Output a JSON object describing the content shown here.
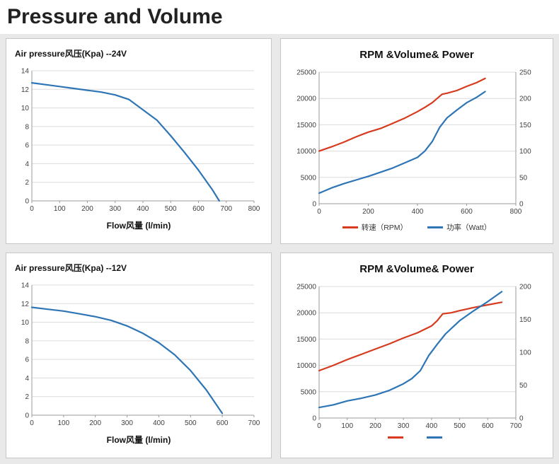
{
  "page": {
    "title": "Pressure and Volume"
  },
  "colors": {
    "red": "#d63b1f",
    "blue": "#2e75b6",
    "gridline": "#dcdcdc",
    "axis": "#9b9b9b"
  },
  "chart_data": [
    {
      "id": "pressure-24v",
      "type": "line",
      "title": "Air pressure风压(Kpa)  --24V",
      "xlabel": "Flow风量  (l/min)",
      "xlim": [
        0,
        800
      ],
      "xtick_step": 100,
      "ylim": [
        0,
        14
      ],
      "ytick_step": 2,
      "grid": true,
      "series": [
        {
          "key": "air-pressure-24v",
          "label": "",
          "color": "#2e75b6",
          "axis": "left",
          "x": [
            0,
            50,
            100,
            150,
            200,
            250,
            300,
            350,
            400,
            450,
            500,
            550,
            600,
            650,
            675
          ],
          "y": [
            12.7,
            12.5,
            12.3,
            12.1,
            11.9,
            11.7,
            11.4,
            10.9,
            9.8,
            8.7,
            7.0,
            5.2,
            3.3,
            1.2,
            0
          ]
        }
      ]
    },
    {
      "id": "rpm-power-24v",
      "type": "line",
      "title": "RPM &Volume& Power",
      "xlim": [
        0,
        800
      ],
      "xtick_step": 200,
      "ylim": [
        0,
        25000
      ],
      "ytick_step": 5000,
      "y2lim": [
        0,
        250
      ],
      "y2tick_step": 50,
      "grid": true,
      "legend_position": "bottom",
      "series": [
        {
          "key": "rpm-24v",
          "label": "转速（RPM）",
          "color": "#d63b1f",
          "axis": "left",
          "x": [
            0,
            50,
            100,
            150,
            200,
            250,
            300,
            350,
            400,
            430,
            460,
            500,
            520,
            560,
            600,
            640,
            675
          ],
          "y": [
            10000,
            10800,
            11700,
            12700,
            13600,
            14300,
            15300,
            16300,
            17500,
            18300,
            19200,
            20800,
            21000,
            21500,
            22300,
            23000,
            23800
          ]
        },
        {
          "key": "power-24v",
          "label": "功率（Watt）",
          "color": "#2e75b6",
          "axis": "right",
          "x": [
            0,
            50,
            100,
            150,
            200,
            250,
            300,
            350,
            400,
            430,
            460,
            490,
            520,
            560,
            600,
            640,
            675
          ],
          "y": [
            20,
            30,
            38,
            45,
            52,
            60,
            68,
            78,
            88,
            100,
            118,
            145,
            163,
            178,
            192,
            202,
            213
          ]
        }
      ]
    },
    {
      "id": "pressure-12v",
      "type": "line",
      "title": "Air pressure风压(Kpa)  --12V",
      "xlabel": "Flow风量  (l/min)",
      "xlim": [
        0,
        700
      ],
      "xtick_step": 100,
      "ylim": [
        0,
        14
      ],
      "ytick_step": 2,
      "grid": true,
      "series": [
        {
          "key": "air-pressure-12v",
          "label": "",
          "color": "#2e75b6",
          "axis": "left",
          "x": [
            0,
            50,
            100,
            150,
            200,
            250,
            300,
            350,
            400,
            450,
            500,
            550,
            600
          ],
          "y": [
            11.6,
            11.4,
            11.2,
            10.9,
            10.6,
            10.2,
            9.6,
            8.8,
            7.8,
            6.5,
            4.8,
            2.7,
            0.2
          ]
        }
      ]
    },
    {
      "id": "rpm-power-12v",
      "type": "line",
      "title": "RPM &Volume& Power",
      "xlim": [
        0,
        700
      ],
      "xtick_step": 100,
      "ylim": [
        0,
        25000
      ],
      "ytick_step": 5000,
      "y2lim": [
        0,
        200
      ],
      "y2tick_step": 50,
      "grid": true,
      "legend_position": "bottom",
      "series": [
        {
          "key": "rpm-12v",
          "label": "",
          "color": "#d63b1f",
          "axis": "left",
          "x": [
            0,
            50,
            100,
            150,
            200,
            250,
            300,
            350,
            400,
            420,
            440,
            470,
            500,
            550,
            600,
            650
          ],
          "y": [
            9000,
            10000,
            11100,
            12100,
            13100,
            14100,
            15200,
            16200,
            17500,
            18500,
            19800,
            20000,
            20400,
            21000,
            21500,
            22000
          ]
        },
        {
          "key": "power-12v",
          "label": "",
          "color": "#2e75b6",
          "axis": "right",
          "x": [
            0,
            50,
            100,
            150,
            200,
            250,
            300,
            330,
            360,
            390,
            420,
            450,
            500,
            550,
            600,
            650
          ],
          "y": [
            16,
            20,
            26,
            30,
            35,
            42,
            52,
            60,
            72,
            95,
            112,
            128,
            148,
            163,
            177,
            192
          ]
        }
      ]
    }
  ]
}
